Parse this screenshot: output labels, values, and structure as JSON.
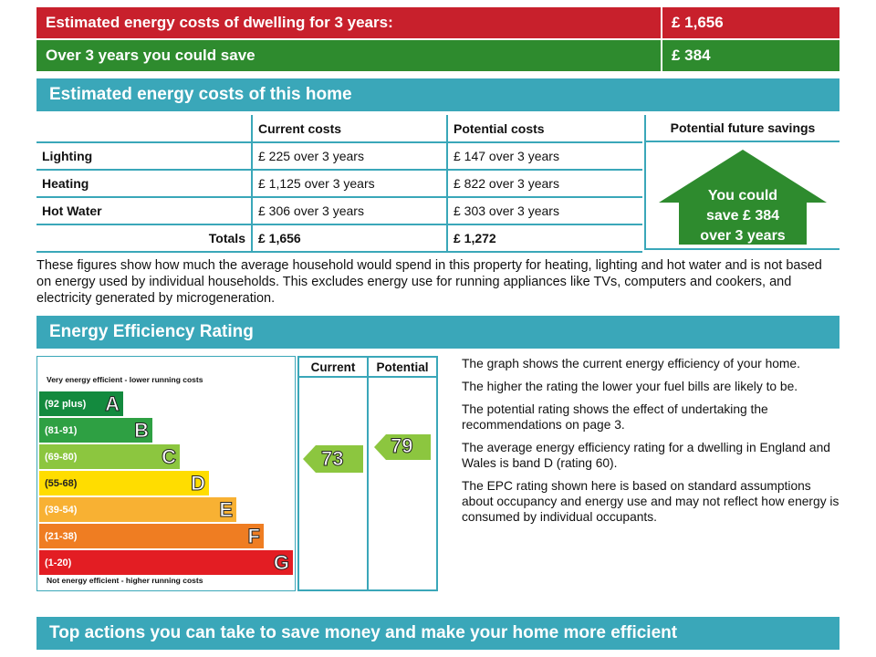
{
  "summary": {
    "estimated_label": "Estimated energy costs of dwelling for 3 years:",
    "estimated_value": "£ 1,656",
    "save_label": "Over 3 years you could save",
    "save_value": "£ 384"
  },
  "costs_section": {
    "title": "Estimated energy costs of this home",
    "headers": {
      "current": "Current costs",
      "potential": "Potential costs",
      "future": "Potential future savings"
    },
    "rows": [
      {
        "label": "Lighting",
        "current": "£ 225 over 3 years",
        "potential": "£ 147 over 3 years"
      },
      {
        "label": "Heating",
        "current": "£ 1,125 over 3 years",
        "potential": "£ 822 over 3 years"
      },
      {
        "label": "Hot Water",
        "current": "£ 306 over 3 years",
        "potential": "£ 303 over 3 years"
      }
    ],
    "totals": {
      "label": "Totals",
      "current": "£ 1,656",
      "potential": "£ 1,272"
    },
    "savings_line1": "You could",
    "savings_line2": "save £ 384",
    "savings_line3": "over 3 years",
    "note": "These figures show how much the average household would spend in this property for heating, lighting and hot water and is not based on energy used by individual households. This excludes energy use for running appliances like TVs, computers and cookers, and electricity generated by microgeneration."
  },
  "rating_section": {
    "title": "Energy Efficiency Rating",
    "top_caption": "Very energy efficient - lower running costs",
    "bottom_caption": "Not energy efficient - higher running costs",
    "col_current": "Current",
    "col_potential": "Potential",
    "bands": [
      {
        "range": "(92 plus)",
        "letter": "A",
        "color": "#138a3e"
      },
      {
        "range": "(81-91)",
        "letter": "B",
        "color": "#2ea043"
      },
      {
        "range": "(69-80)",
        "letter": "C",
        "color": "#8cc63f"
      },
      {
        "range": "(55-68)",
        "letter": "D",
        "color": "#ffdd00"
      },
      {
        "range": "(39-54)",
        "letter": "E",
        "color": "#f8b133"
      },
      {
        "range": "(21-38)",
        "letter": "F",
        "color": "#ef7d22"
      },
      {
        "range": "(1-20)",
        "letter": "G",
        "color": "#e31d23"
      }
    ],
    "current_rating": "73",
    "potential_rating": "79",
    "current_color": "#8cc63f",
    "potential_color": "#8cc63f",
    "explain": [
      "The graph shows the current energy efficiency of your home.",
      "The higher the rating the lower your fuel bills are likely to be.",
      "The potential rating shows the effect of undertaking the recommendations on page 3.",
      "The average energy efficiency rating for a dwelling in England and Wales is band D (rating 60).",
      "The EPC rating shown here is based on standard assumptions about occupancy and energy use and may not reflect how energy is consumed by individual occupants."
    ]
  },
  "actions_section": {
    "title": "Top actions you can take to save money and make your home more efficient"
  }
}
